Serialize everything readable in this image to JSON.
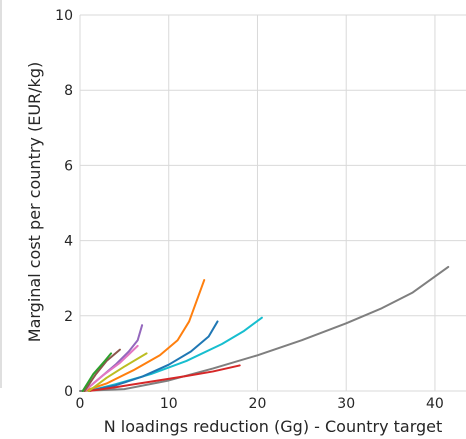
{
  "chart_data": {
    "type": "line",
    "xlabel": "N loadings reduction (Gg) - Country target",
    "ylabel": "Marginal cost per country (EUR/kg)",
    "xlim": [
      0,
      43.5
    ],
    "ylim": [
      0,
      10
    ],
    "xticks": [
      0,
      10,
      20,
      30,
      40
    ],
    "yticks": [
      0,
      2,
      4,
      6,
      8,
      10
    ],
    "grid": true,
    "series": [
      {
        "color": "#7f7f7f",
        "x": [
          0,
          5,
          10,
          15,
          20,
          25,
          30,
          34,
          37.5,
          41.5
        ],
        "y": [
          0,
          0.05,
          0.28,
          0.6,
          0.95,
          1.35,
          1.8,
          2.2,
          2.62,
          3.3
        ]
      },
      {
        "color": "#17becf",
        "x": [
          1,
          4,
          8,
          12,
          16,
          18.5,
          20.5
        ],
        "y": [
          0,
          0.18,
          0.45,
          0.8,
          1.25,
          1.6,
          1.95
        ]
      },
      {
        "color": "#1f77b4",
        "x": [
          1,
          4,
          7,
          10,
          12.5,
          14.5,
          15.5
        ],
        "y": [
          0,
          0.15,
          0.38,
          0.7,
          1.05,
          1.45,
          1.85
        ]
      },
      {
        "color": "#ff7f0e",
        "x": [
          0.5,
          3,
          6,
          9,
          11,
          12.3,
          14
        ],
        "y": [
          0,
          0.2,
          0.55,
          0.95,
          1.35,
          1.85,
          2.95
        ]
      },
      {
        "color": "#d62728",
        "x": [
          1,
          4,
          8,
          12,
          15,
          18
        ],
        "y": [
          0,
          0.1,
          0.25,
          0.4,
          0.52,
          0.68
        ]
      },
      {
        "color": "#9467bd",
        "x": [
          0.5,
          2,
          4,
          5.5,
          6.5,
          7
        ],
        "y": [
          0,
          0.3,
          0.7,
          1.05,
          1.35,
          1.75
        ]
      },
      {
        "color": "#bcbd22",
        "x": [
          1,
          3,
          5,
          7.5
        ],
        "y": [
          0,
          0.35,
          0.65,
          1.0
        ]
      },
      {
        "color": "#e377c2",
        "x": [
          0.5,
          2.5,
          4.5,
          6.5
        ],
        "y": [
          0,
          0.4,
          0.75,
          1.2
        ]
      },
      {
        "color": "#8c564b",
        "x": [
          0.5,
          1.8,
          3,
          4.5
        ],
        "y": [
          0,
          0.45,
          0.8,
          1.1
        ]
      },
      {
        "color": "#2ca02c",
        "x": [
          0.3,
          1.5,
          2.8,
          3.5
        ],
        "y": [
          0,
          0.45,
          0.8,
          1.0
        ]
      }
    ]
  }
}
